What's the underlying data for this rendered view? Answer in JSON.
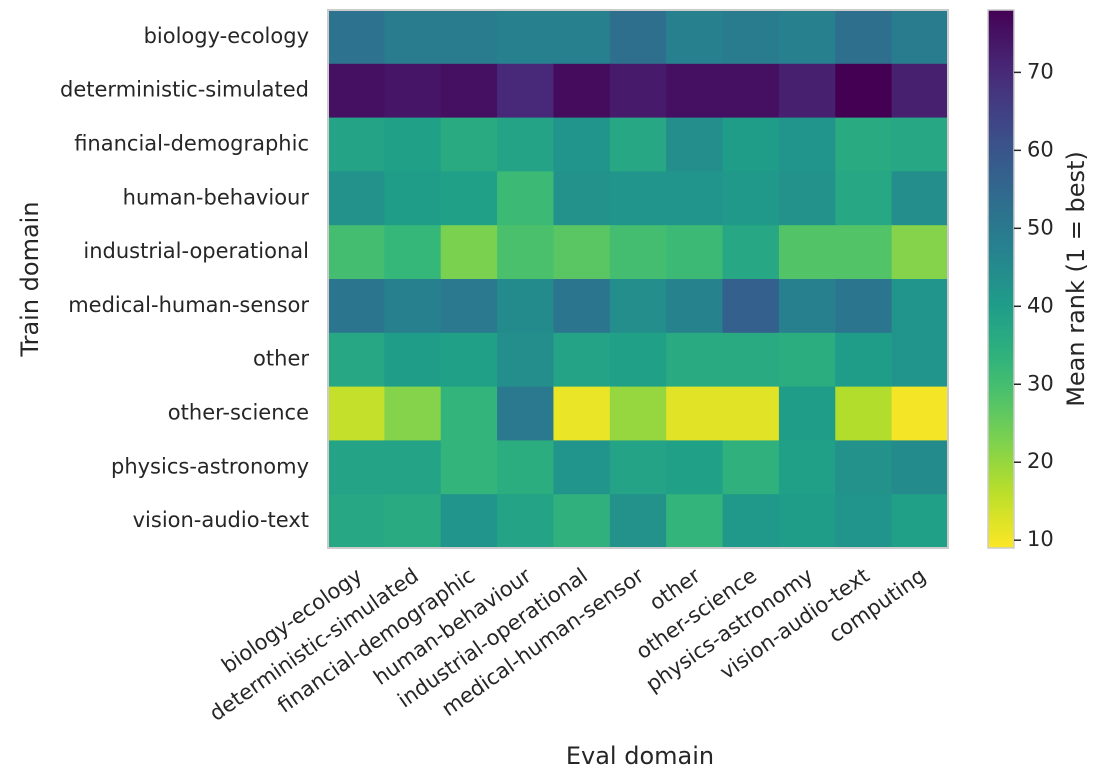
{
  "chart_data": {
    "type": "heatmap",
    "xlabel": "Eval domain",
    "ylabel": "Train domain",
    "x_categories": [
      "biology-ecology",
      "deterministic-simulated",
      "financial-demographic",
      "human-behaviour",
      "industrial-operational",
      "medical-human-sensor",
      "other",
      "other-science",
      "physics-astronomy",
      "vision-audio-text",
      "computing"
    ],
    "y_categories": [
      "biology-ecology",
      "deterministic-simulated",
      "financial-demographic",
      "human-behaviour",
      "industrial-operational",
      "medical-human-sensor",
      "other",
      "other-science",
      "physics-astronomy",
      "vision-audio-text"
    ],
    "values": [
      [
        52,
        49,
        49,
        48,
        48,
        53,
        48,
        49,
        48,
        53,
        49
      ],
      [
        75,
        74,
        75,
        70,
        76,
        73,
        75,
        75,
        72,
        78,
        72
      ],
      [
        38,
        39,
        36,
        38,
        42,
        37,
        44,
        40,
        42,
        36,
        37
      ],
      [
        43,
        40,
        39,
        31,
        43,
        42,
        42,
        41,
        43,
        37,
        44
      ],
      [
        30,
        32,
        23,
        29,
        27,
        30,
        31,
        37,
        28,
        28,
        22
      ],
      [
        51,
        48,
        50,
        45,
        51,
        44,
        47,
        57,
        48,
        51,
        42
      ],
      [
        37,
        40,
        39,
        44,
        38,
        39,
        36,
        36,
        35,
        40,
        42
      ],
      [
        15,
        22,
        33,
        50,
        11,
        20,
        12,
        12,
        40,
        17,
        10
      ],
      [
        38,
        38,
        33,
        35,
        42,
        38,
        39,
        34,
        39,
        43,
        45
      ],
      [
        37,
        36,
        42,
        38,
        34,
        43,
        33,
        41,
        40,
        42,
        39
      ]
    ],
    "colorbar": {
      "label": "Mean rank (1 = best)",
      "min": 9,
      "max": 78,
      "ticks": [
        10,
        20,
        30,
        40,
        50,
        60,
        70
      ],
      "colormap": "viridis_r"
    }
  }
}
